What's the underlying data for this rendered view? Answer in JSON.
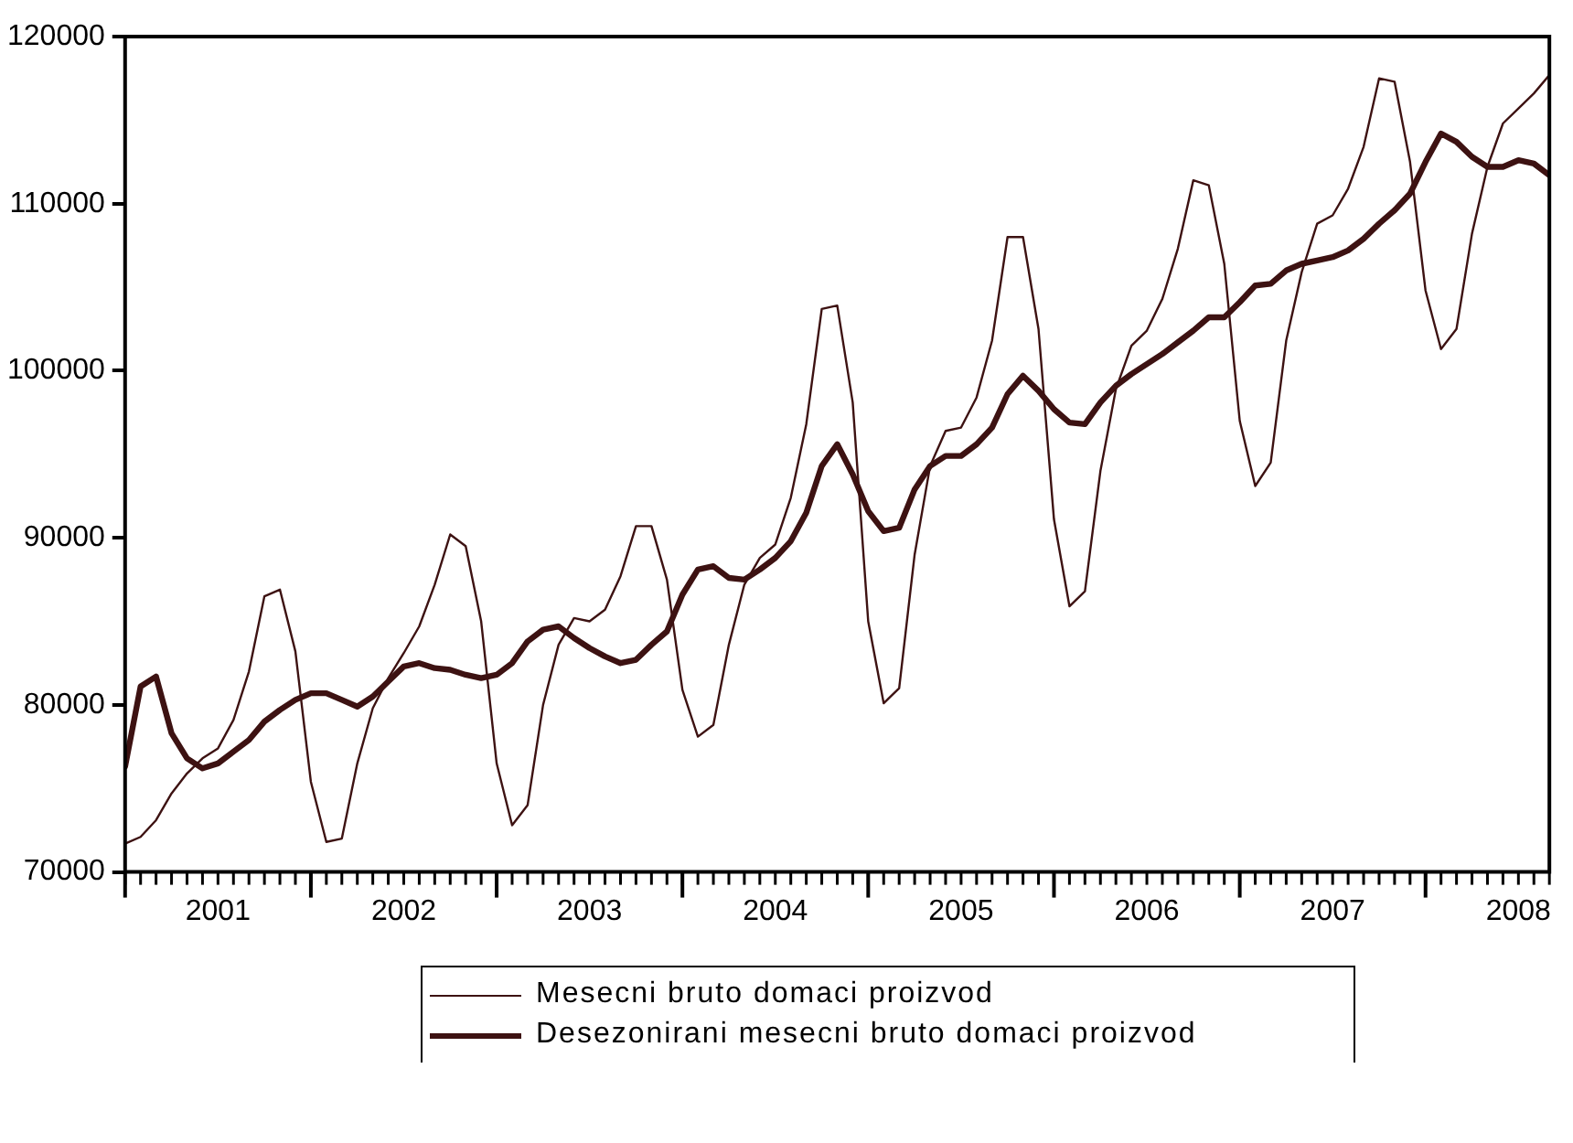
{
  "chart_data": {
    "type": "line",
    "x": [
      "2001-01",
      "2001-02",
      "2001-03",
      "2001-04",
      "2001-05",
      "2001-06",
      "2001-07",
      "2001-08",
      "2001-09",
      "2001-10",
      "2001-11",
      "2001-12",
      "2002-01",
      "2002-02",
      "2002-03",
      "2002-04",
      "2002-05",
      "2002-06",
      "2002-07",
      "2002-08",
      "2002-09",
      "2002-10",
      "2002-11",
      "2002-12",
      "2003-01",
      "2003-02",
      "2003-03",
      "2003-04",
      "2003-05",
      "2003-06",
      "2003-07",
      "2003-08",
      "2003-09",
      "2003-10",
      "2003-11",
      "2003-12",
      "2004-01",
      "2004-02",
      "2004-03",
      "2004-04",
      "2004-05",
      "2004-06",
      "2004-07",
      "2004-08",
      "2004-09",
      "2004-10",
      "2004-11",
      "2004-12",
      "2005-01",
      "2005-02",
      "2005-03",
      "2005-04",
      "2005-05",
      "2005-06",
      "2005-07",
      "2005-08",
      "2005-09",
      "2005-10",
      "2005-11",
      "2005-12",
      "2006-01",
      "2006-02",
      "2006-03",
      "2006-04",
      "2006-05",
      "2006-06",
      "2006-07",
      "2006-08",
      "2006-09",
      "2006-10",
      "2006-11",
      "2006-12",
      "2007-01",
      "2007-02",
      "2007-03",
      "2007-04",
      "2007-05",
      "2007-06",
      "2007-07",
      "2007-08",
      "2007-09",
      "2007-10",
      "2007-11",
      "2007-12",
      "2008-01",
      "2008-02",
      "2008-03",
      "2008-04",
      "2008-05",
      "2008-06",
      "2008-07",
      "2008-08",
      "2008-09"
    ],
    "series": [
      {
        "name": "Mesecni bruto domaci proizvod",
        "color": "#3d1212",
        "values": [
          71700,
          72100,
          73100,
          74700,
          75900,
          76800,
          77400,
          79100,
          82000,
          86500,
          86900,
          83200,
          75400,
          71800,
          72000,
          76500,
          79800,
          81600,
          83100,
          84700,
          87200,
          90200,
          89500,
          85000,
          76500,
          72800,
          74000,
          80000,
          83600,
          85200,
          85000,
          85700,
          87700,
          90700,
          90700,
          87500,
          80900,
          78100,
          78800,
          83600,
          87200,
          88800,
          89600,
          92400,
          96800,
          103700,
          103900,
          98100,
          85000,
          80100,
          81000,
          89000,
          94300,
          96400,
          96600,
          98400,
          101800,
          108000,
          108000,
          102500,
          91100,
          85900,
          86800,
          94000,
          98900,
          101500,
          102400,
          104300,
          107300,
          111400,
          111100,
          106400,
          97000,
          93100,
          94500,
          101800,
          105900,
          108800,
          109300,
          110900,
          113400,
          117500,
          117300,
          112500,
          104800,
          101300,
          102500,
          108200,
          112200,
          114800,
          115700,
          116600,
          117700
        ]
      },
      {
        "name": "Desezonirani mesecni bruto domaci proizvod",
        "color": "#3d1212",
        "values": [
          76300,
          81100,
          81700,
          78300,
          76800,
          76200,
          76500,
          77200,
          77900,
          79000,
          79700,
          80300,
          80700,
          80700,
          80300,
          79900,
          80500,
          81400,
          82300,
          82500,
          82200,
          82100,
          81800,
          81600,
          81800,
          82500,
          83800,
          84500,
          84700,
          84000,
          83400,
          82900,
          82500,
          82700,
          83600,
          84400,
          86600,
          88100,
          88300,
          87600,
          87500,
          88100,
          88800,
          89800,
          91500,
          94300,
          95600,
          93800,
          91600,
          90400,
          90600,
          92900,
          94300,
          94900,
          94900,
          95600,
          96600,
          98600,
          99700,
          98800,
          97700,
          96900,
          96800,
          98100,
          99100,
          99800,
          100400,
          101000,
          101700,
          102400,
          103200,
          103200,
          104100,
          105100,
          105200,
          106000,
          106400,
          106600,
          106800,
          107200,
          107900,
          108800,
          109600,
          110600,
          112500,
          114200,
          113700,
          112800,
          112200,
          112200,
          112600,
          112400,
          111700
        ]
      }
    ],
    "xlim": [
      "2001-01",
      "2008-09"
    ],
    "xticks": [
      {
        "value": "2001-01",
        "label": null
      },
      {
        "value": "2001-07",
        "label": "2001"
      },
      {
        "value": "2002-01",
        "label": null
      },
      {
        "value": "2002-07",
        "label": "2002"
      },
      {
        "value": "2003-01",
        "label": null
      },
      {
        "value": "2003-07",
        "label": "2003"
      },
      {
        "value": "2004-01",
        "label": null
      },
      {
        "value": "2004-07",
        "label": "2004"
      },
      {
        "value": "2005-01",
        "label": null
      },
      {
        "value": "2005-07",
        "label": "2005"
      },
      {
        "value": "2006-01",
        "label": null
      },
      {
        "value": "2006-07",
        "label": "2006"
      },
      {
        "value": "2007-01",
        "label": null
      },
      {
        "value": "2007-07",
        "label": "2007"
      },
      {
        "value": "2008-01",
        "label": null
      },
      {
        "value": "2008-07",
        "label": "2008"
      }
    ],
    "ylim": [
      70000,
      120000
    ],
    "yticks": [
      70000,
      80000,
      90000,
      100000,
      110000,
      120000
    ],
    "grid": false,
    "legend": "bottom",
    "marker": "none",
    "line_style": "solid"
  }
}
